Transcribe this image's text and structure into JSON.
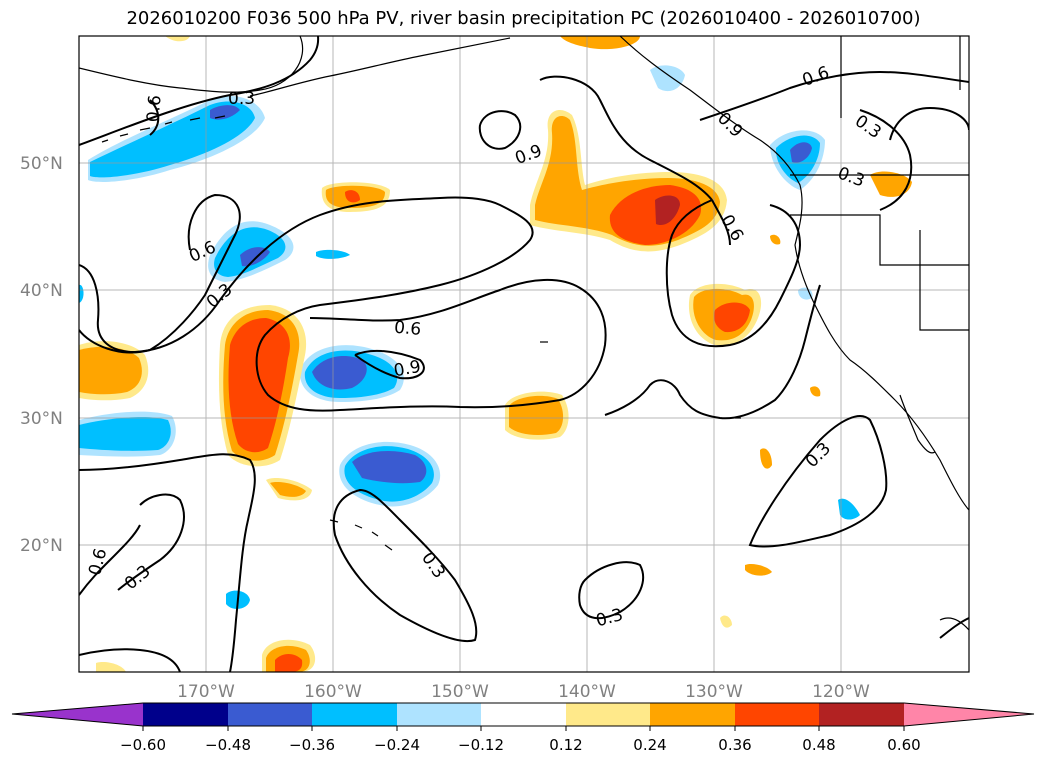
{
  "title": "2026010200 F036 500 hPa PV, river basin precipitation PC (2026010400 - 2026010700)",
  "map": {
    "lat_labels": [
      "50°N",
      "40°N",
      "30°N",
      "20°N"
    ],
    "lon_labels": [
      "170°W",
      "160°W",
      "150°W",
      "140°W",
      "130°W",
      "120°W"
    ],
    "contour_labels": [
      "0.3",
      "0.6",
      "0.9",
      "0.6",
      "0.3",
      "0.9",
      "0.6",
      "0.6",
      "0.9",
      "0.6",
      "0.3",
      "0.3",
      "0.3",
      "0.3",
      "0.3",
      "0.3",
      "0.6"
    ],
    "colors": {
      "neg_060": "#9933cc",
      "neg_048": "#00008b",
      "neg_036": "#3a5bd1",
      "neg_024": "#00bfff",
      "neg_012": "#aee3ff",
      "zero": "#ffffff",
      "pos_012": "#ffe98a",
      "pos_024": "#ffa500",
      "pos_036": "#ff4500",
      "pos_048": "#b22222",
      "pos_060": "#ff85a8"
    }
  },
  "colorbar": {
    "ticks": [
      "−0.60",
      "−0.48",
      "−0.36",
      "−0.24",
      "−0.12",
      "0.12",
      "0.24",
      "0.36",
      "0.48",
      "0.60"
    ],
    "bins": [
      {
        "color": "#9933cc"
      },
      {
        "color": "#00008b"
      },
      {
        "color": "#3a5bd1"
      },
      {
        "color": "#00bfff"
      },
      {
        "color": "#aee3ff"
      },
      {
        "color": "#ffffff"
      },
      {
        "color": "#ffe98a"
      },
      {
        "color": "#ffa500"
      },
      {
        "color": "#ff4500"
      },
      {
        "color": "#b22222"
      },
      {
        "color": "#ff85a8"
      }
    ]
  }
}
